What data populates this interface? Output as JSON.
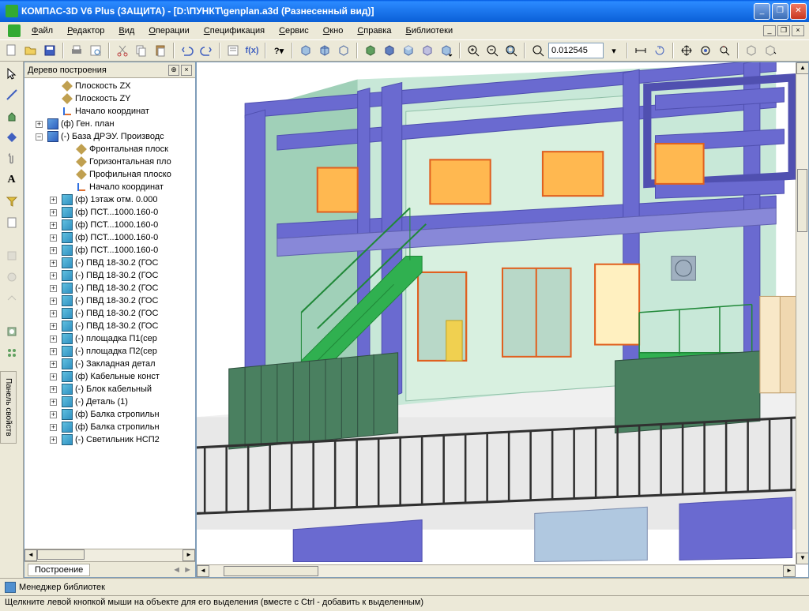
{
  "window": {
    "title": "КОМПАС-3D V6 Plus (ЗАЩИТА) - [D:\\ПУНКТ\\genplan.a3d (Разнесенный вид)]"
  },
  "menu": {
    "items": [
      "Файл",
      "Редактор",
      "Вид",
      "Операции",
      "Спецификация",
      "Сервис",
      "Окно",
      "Справка",
      "Библиотеки"
    ]
  },
  "toolbar": {
    "scale_value": "0.012545"
  },
  "tree": {
    "title": "Дерево построения",
    "footer": "Построение",
    "nodes": [
      {
        "indent": 1,
        "exp": "",
        "icon": "i-plane",
        "label": "Плоскость ZX"
      },
      {
        "indent": 1,
        "exp": "",
        "icon": "i-plane",
        "label": "Плоскость ZY"
      },
      {
        "indent": 1,
        "exp": "",
        "icon": "i-origin",
        "label": "Начало координат"
      },
      {
        "indent": 0,
        "exp": "+",
        "icon": "i-assembly",
        "label": "(ф) Ген. план"
      },
      {
        "indent": 0,
        "exp": "−",
        "icon": "i-assembly",
        "label": "(-) База ДРЭУ. Производс"
      },
      {
        "indent": 2,
        "exp": "",
        "icon": "i-plane",
        "label": "Фронтальная плоск"
      },
      {
        "indent": 2,
        "exp": "",
        "icon": "i-plane",
        "label": "Горизонтальная пло"
      },
      {
        "indent": 2,
        "exp": "",
        "icon": "i-plane",
        "label": "Профильная плоско"
      },
      {
        "indent": 2,
        "exp": "",
        "icon": "i-origin",
        "label": "Начало координат"
      },
      {
        "indent": 1,
        "exp": "+",
        "icon": "i-part",
        "label": "(ф) 1этаж отм. 0.000"
      },
      {
        "indent": 1,
        "exp": "+",
        "icon": "i-part",
        "label": "(ф) ПСТ...1000.160-0"
      },
      {
        "indent": 1,
        "exp": "+",
        "icon": "i-part",
        "label": "(ф) ПСТ...1000.160-0"
      },
      {
        "indent": 1,
        "exp": "+",
        "icon": "i-part",
        "label": "(ф) ПСТ...1000.160-0"
      },
      {
        "indent": 1,
        "exp": "+",
        "icon": "i-part",
        "label": "(ф) ПСТ...1000.160-0"
      },
      {
        "indent": 1,
        "exp": "+",
        "icon": "i-part",
        "label": "(-) ПВД 18-30.2 (ГОС"
      },
      {
        "indent": 1,
        "exp": "+",
        "icon": "i-part",
        "label": "(-) ПВД 18-30.2 (ГОС"
      },
      {
        "indent": 1,
        "exp": "+",
        "icon": "i-part",
        "label": "(-) ПВД 18-30.2 (ГОС"
      },
      {
        "indent": 1,
        "exp": "+",
        "icon": "i-part",
        "label": "(-) ПВД 18-30.2 (ГОС"
      },
      {
        "indent": 1,
        "exp": "+",
        "icon": "i-part",
        "label": "(-) ПВД 18-30.2 (ГОС"
      },
      {
        "indent": 1,
        "exp": "+",
        "icon": "i-part",
        "label": "(-) ПВД 18-30.2 (ГОС"
      },
      {
        "indent": 1,
        "exp": "+",
        "icon": "i-part",
        "label": "(-) площадка П1(сер"
      },
      {
        "indent": 1,
        "exp": "+",
        "icon": "i-part",
        "label": "(-) площадка П2(сер"
      },
      {
        "indent": 1,
        "exp": "+",
        "icon": "i-part",
        "label": "(-) Закладная детал"
      },
      {
        "indent": 1,
        "exp": "+",
        "icon": "i-part",
        "label": "(ф) Кабельные конст"
      },
      {
        "indent": 1,
        "exp": "+",
        "icon": "i-part",
        "label": "(-) Блок кабельный"
      },
      {
        "indent": 1,
        "exp": "+",
        "icon": "i-part",
        "label": "(-) Деталь (1)"
      },
      {
        "indent": 1,
        "exp": "+",
        "icon": "i-part",
        "label": "(ф) Балка стропильн"
      },
      {
        "indent": 1,
        "exp": "+",
        "icon": "i-part",
        "label": "(ф) Балка стропильн"
      },
      {
        "indent": 1,
        "exp": "+",
        "icon": "i-part",
        "label": "(-) Светильник НСП2"
      }
    ]
  },
  "library_manager": "Менеджер библиотек",
  "status": "Щелкните левой кнопкой мыши на объекте для его выделения (вместе с Ctrl - добавить к выделенным)",
  "side_label": "Панель свойств",
  "colors": {
    "beam": "#6a6ad0",
    "beam_dark": "#5050b0",
    "wall": "#c8e8d8",
    "wall_d": "#a0d0b8",
    "stair": "#30b050",
    "stair_d": "#208838",
    "door_f": "#ffb850",
    "door_s": "#e06020",
    "ground": "#e8e8e8",
    "fence": "#303030",
    "container": "#4a8060",
    "yellow": "#f0d050"
  }
}
